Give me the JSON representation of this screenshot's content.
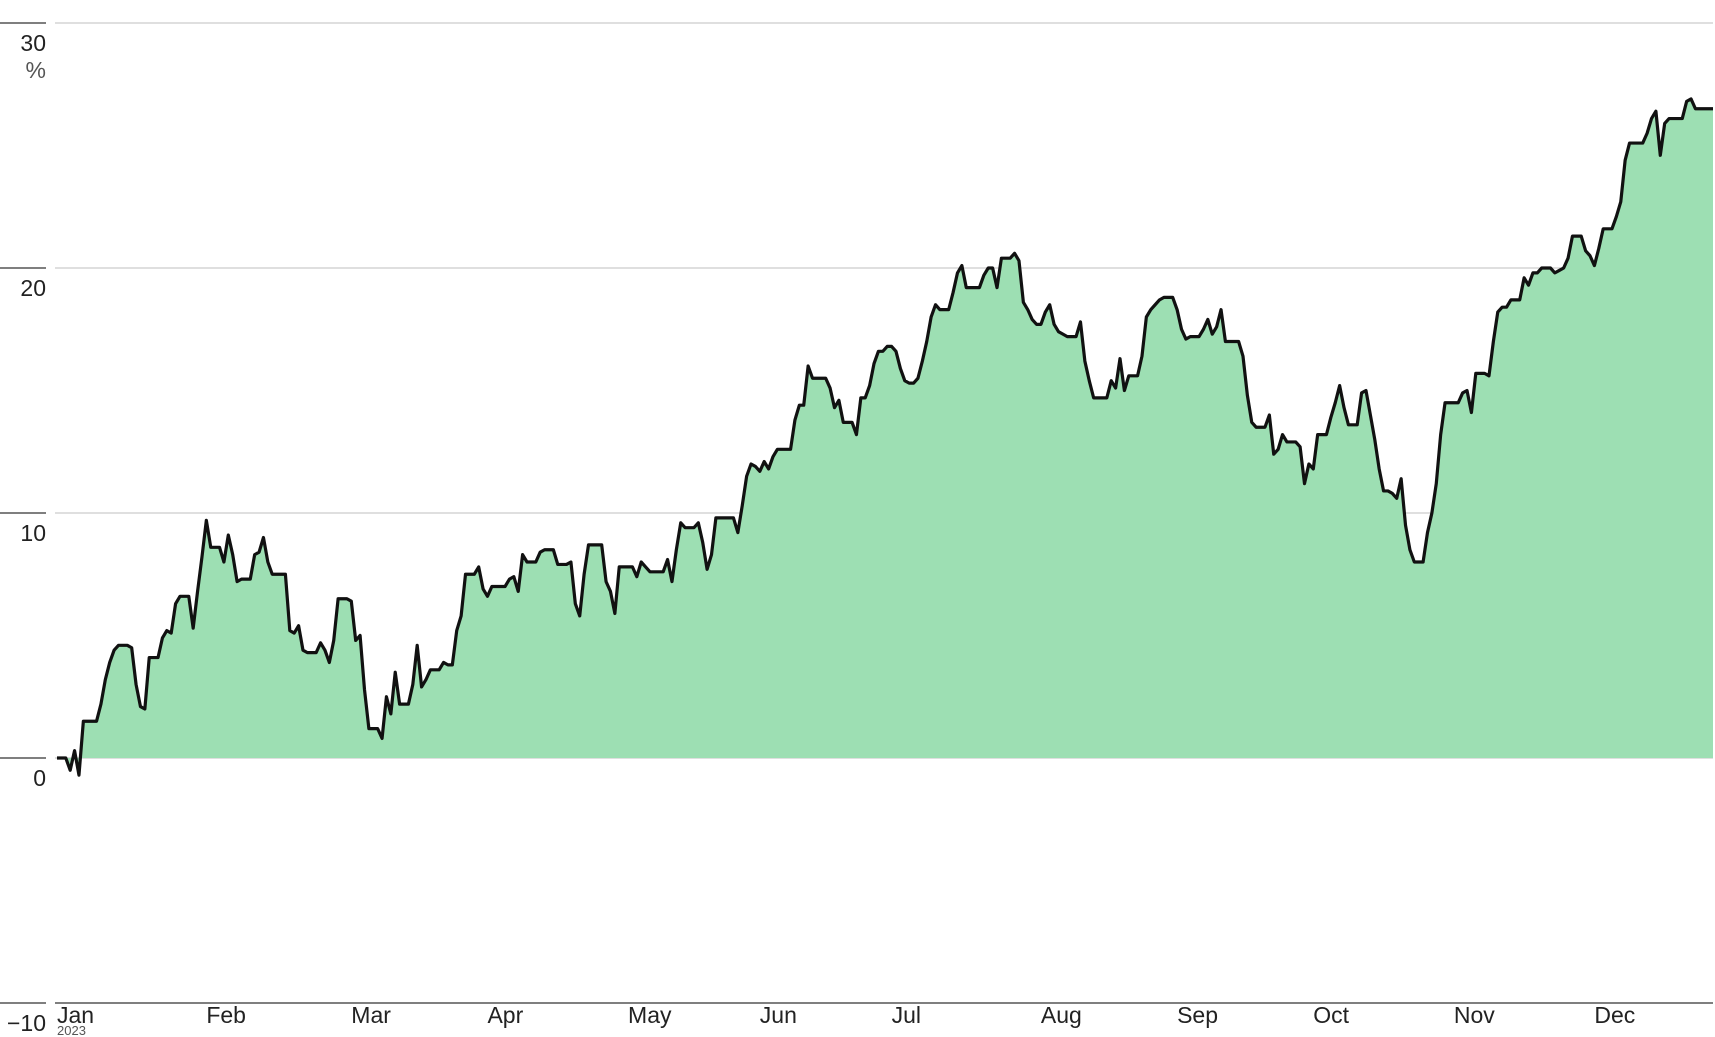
{
  "chart_data": {
    "type": "area",
    "y_unit": "%",
    "x_sublabel": "2023",
    "categories": [
      "Jan",
      null,
      null,
      null,
      null,
      null,
      null,
      null,
      null,
      null,
      null,
      null,
      null,
      null,
      null,
      null,
      null,
      null,
      null,
      null,
      null,
      null,
      null,
      null,
      null,
      null,
      null,
      null,
      null,
      null,
      null,
      null,
      null,
      null,
      "Feb",
      null,
      null,
      null,
      null,
      null,
      null,
      null,
      null,
      null,
      null,
      null,
      null,
      null,
      null,
      null,
      null,
      null,
      null,
      null,
      null,
      null,
      null,
      null,
      null,
      null,
      null,
      null,
      null,
      null,
      null,
      null,
      null,
      "Mar",
      null,
      null,
      null,
      null,
      null,
      null,
      null,
      null,
      null,
      null,
      null,
      null,
      null,
      null,
      null,
      null,
      null,
      null,
      null,
      null,
      null,
      null,
      null,
      null,
      null,
      null,
      null,
      null,
      null,
      null,
      "Apr",
      null,
      null,
      null,
      null,
      null,
      null,
      null,
      null,
      null,
      null,
      null,
      null,
      null,
      null,
      null,
      null,
      null,
      null,
      null,
      null,
      null,
      null,
      null,
      null,
      null,
      null,
      null,
      null,
      null,
      null,
      null,
      "May",
      null,
      null,
      null,
      null,
      null,
      null,
      null,
      null,
      null,
      null,
      null,
      null,
      null,
      null,
      null,
      null,
      null,
      null,
      null,
      null,
      null,
      null,
      null,
      null,
      null,
      null,
      null,
      null,
      null,
      "Jun",
      null,
      null,
      null,
      null,
      null,
      null,
      null,
      null,
      null,
      null,
      null,
      null,
      null,
      null,
      null,
      null,
      null,
      null,
      null,
      null,
      null,
      null,
      null,
      null,
      null,
      null,
      null,
      null,
      null,
      "Jul",
      null,
      null,
      null,
      null,
      null,
      null,
      null,
      null,
      null,
      null,
      null,
      null,
      null,
      null,
      null,
      null,
      null,
      null,
      null,
      null,
      null,
      null,
      null,
      null,
      null,
      null,
      null,
      null,
      null,
      null,
      null,
      null,
      null,
      "Aug",
      null,
      null,
      null,
      null,
      null,
      null,
      null,
      null,
      null,
      null,
      null,
      null,
      null,
      null,
      null,
      null,
      null,
      null,
      null,
      null,
      null,
      null,
      null,
      null,
      null,
      null,
      null,
      null,
      null,
      null,
      "Sep",
      null,
      null,
      null,
      null,
      null,
      null,
      null,
      null,
      null,
      null,
      null,
      null,
      null,
      null,
      null,
      null,
      null,
      null,
      null,
      null,
      null,
      null,
      null,
      null,
      null,
      null,
      null,
      null,
      null,
      null,
      "Oct",
      null,
      null,
      null,
      null,
      null,
      null,
      null,
      null,
      null,
      null,
      null,
      null,
      null,
      null,
      null,
      null,
      null,
      null,
      null,
      null,
      null,
      null,
      null,
      null,
      null,
      null,
      null,
      null,
      null,
      null,
      null,
      "Nov",
      null,
      null,
      null,
      null,
      null,
      null,
      null,
      null,
      null,
      null,
      null,
      null,
      null,
      null,
      null,
      null,
      null,
      null,
      null,
      null,
      null,
      null,
      null,
      null,
      null,
      null,
      null,
      null,
      null,
      null,
      null,
      "Dec",
      null,
      null,
      null,
      null,
      null,
      null,
      null,
      null,
      null,
      null,
      null,
      null,
      null,
      null,
      null,
      null,
      null,
      null,
      null,
      null,
      null,
      null,
      null,
      null,
      null,
      null,
      null
    ],
    "values": [
      0,
      0,
      0,
      -0.5,
      0.3,
      -0.7,
      1.5,
      1.5,
      1.5,
      1.5,
      2.2,
      3.2,
      3.9,
      4.4,
      4.6,
      4.6,
      4.6,
      4.5,
      3.0,
      2.1,
      2.0,
      4.1,
      4.1,
      4.1,
      4.9,
      5.2,
      5.1,
      6.3,
      6.6,
      6.6,
      6.6,
      5.3,
      6.8,
      8.2,
      9.7,
      8.6,
      8.6,
      8.6,
      8.0,
      9.1,
      8.3,
      7.2,
      7.3,
      7.3,
      7.3,
      8.3,
      8.4,
      9.0,
      8.0,
      7.5,
      7.5,
      7.5,
      7.5,
      5.2,
      5.1,
      5.4,
      4.4,
      4.3,
      4.3,
      4.3,
      4.7,
      4.4,
      3.9,
      4.8,
      6.5,
      6.5,
      6.5,
      6.4,
      4.8,
      5.0,
      2.8,
      1.2,
      1.2,
      1.2,
      0.8,
      2.5,
      1.8,
      3.5,
      2.2,
      2.2,
      2.2,
      3.0,
      4.6,
      2.9,
      3.2,
      3.6,
      3.6,
      3.6,
      3.9,
      3.8,
      3.8,
      5.2,
      5.8,
      7.5,
      7.5,
      7.5,
      7.8,
      6.9,
      6.6,
      7.0,
      7.0,
      7.0,
      7.0,
      7.3,
      7.4,
      6.8,
      8.3,
      8.0,
      8.0,
      8.0,
      8.4,
      8.5,
      8.5,
      8.5,
      7.9,
      7.9,
      7.9,
      8.0,
      6.3,
      5.8,
      7.5,
      8.7,
      8.7,
      8.7,
      8.7,
      7.2,
      6.8,
      5.9,
      7.8,
      7.8,
      7.8,
      7.8,
      7.4,
      8.0,
      7.8,
      7.6,
      7.6,
      7.6,
      7.6,
      8.1,
      7.2,
      8.5,
      9.6,
      9.4,
      9.4,
      9.4,
      9.6,
      8.8,
      7.7,
      8.3,
      9.8,
      9.8,
      9.8,
      9.8,
      9.8,
      9.2,
      10.3,
      11.5,
      12.0,
      11.9,
      11.7,
      12.1,
      11.8,
      12.3,
      12.6,
      12.6,
      12.6,
      12.6,
      13.8,
      14.4,
      14.4,
      16.0,
      15.5,
      15.5,
      15.5,
      15.5,
      15.1,
      14.3,
      14.6,
      13.7,
      13.7,
      13.7,
      13.2,
      14.7,
      14.7,
      15.2,
      16.1,
      16.6,
      16.6,
      16.8,
      16.8,
      16.6,
      15.9,
      15.4,
      15.3,
      15.3,
      15.5,
      16.2,
      17.0,
      18.0,
      18.5,
      18.3,
      18.3,
      18.3,
      19.0,
      19.8,
      20.1,
      19.2,
      19.2,
      19.2,
      19.2,
      19.7,
      20.0,
      20.0,
      19.2,
      20.4,
      20.4,
      20.4,
      20.6,
      20.3,
      18.6,
      18.3,
      17.9,
      17.7,
      17.7,
      18.2,
      18.5,
      17.7,
      17.4,
      17.3,
      17.2,
      17.2,
      17.2,
      17.8,
      16.2,
      15.4,
      14.7,
      14.7,
      14.7,
      14.7,
      15.4,
      15.1,
      16.3,
      15.0,
      15.6,
      15.6,
      15.6,
      16.4,
      18.0,
      18.3,
      18.5,
      18.7,
      18.8,
      18.8,
      18.8,
      18.3,
      17.5,
      17.1,
      17.2,
      17.2,
      17.2,
      17.5,
      17.9,
      17.3,
      17.6,
      18.3,
      17.0,
      17.0,
      17.0,
      17.0,
      16.4,
      14.8,
      13.7,
      13.5,
      13.5,
      13.5,
      14.0,
      12.4,
      12.6,
      13.2,
      12.9,
      12.9,
      12.9,
      12.7,
      11.2,
      12.0,
      11.8,
      13.2,
      13.2,
      13.2,
      13.9,
      14.5,
      15.2,
      14.3,
      13.6,
      13.6,
      13.6,
      14.9,
      15.0,
      14.0,
      13.0,
      11.8,
      10.9,
      10.9,
      10.8,
      10.6,
      11.4,
      9.5,
      8.5,
      8.0,
      8.0,
      8.0,
      9.2,
      10.0,
      11.2,
      13.2,
      14.5,
      14.5,
      14.5,
      14.5,
      14.9,
      15.0,
      14.1,
      15.7,
      15.7,
      15.7,
      15.6,
      17.0,
      18.2,
      18.4,
      18.4,
      18.7,
      18.7,
      18.7,
      19.6,
      19.3,
      19.8,
      19.8,
      20.0,
      20.0,
      20.0,
      19.8,
      19.9,
      20.0,
      20.4,
      21.3,
      21.3,
      21.3,
      20.7,
      20.5,
      20.1,
      20.8,
      21.6,
      21.6,
      21.6,
      22.1,
      22.7,
      24.4,
      25.1,
      25.1,
      25.1,
      25.1,
      25.5,
      26.1,
      26.4,
      24.6,
      25.9,
      26.1,
      26.1,
      26.1,
      26.1,
      26.8,
      26.9,
      26.5,
      26.5,
      26.5,
      26.5,
      26.5
    ],
    "line_color": "#111111",
    "band_colors": [
      "#9ddfb3",
      "#6dcf90",
      "#3dbd6a"
    ],
    "ylim": [
      -10,
      30
    ],
    "yticks": [
      {
        "value": -10,
        "label": "−10"
      },
      0,
      10,
      20,
      30
    ],
    "grid": true
  }
}
